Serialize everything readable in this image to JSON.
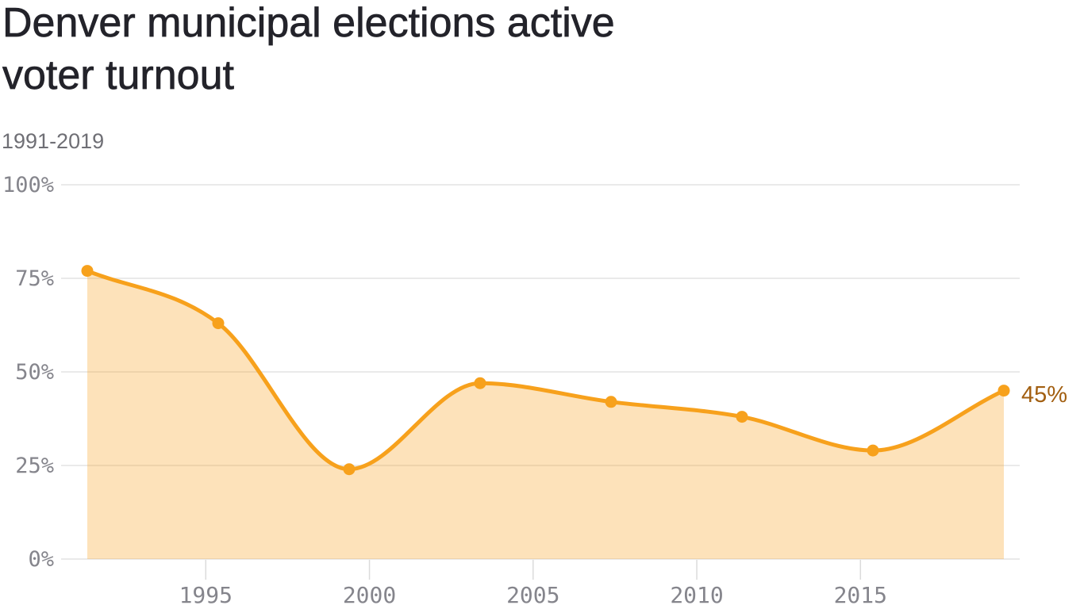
{
  "header": {
    "title": "Denver municipal elections active voter turnout",
    "subtitle": "1991-2019"
  },
  "chart_data": {
    "type": "area",
    "title": "Denver municipal elections active voter turnout",
    "subtitle": "1991-2019",
    "x": [
      1991,
      1995,
      1999,
      2003,
      2007,
      2011,
      2015,
      2019
    ],
    "values": [
      77,
      63,
      24,
      47,
      42,
      38,
      29,
      45
    ],
    "unit": "%",
    "end_label": "45%",
    "xlabel": "",
    "ylabel": "",
    "ylim": [
      0,
      100
    ],
    "grid": true,
    "legend_position": "none",
    "y_ticks": [
      {
        "label": "100%",
        "value": 100
      },
      {
        "label": "75%",
        "value": 75
      },
      {
        "label": "50%",
        "value": 50
      },
      {
        "label": "25%",
        "value": 25
      },
      {
        "label": "0%",
        "value": 0
      }
    ],
    "x_ticks": [
      {
        "label": "1995",
        "value": 1995
      },
      {
        "label": "2000",
        "value": 2000
      },
      {
        "label": "2005",
        "value": 2005
      },
      {
        "label": "2010",
        "value": 2010
      },
      {
        "label": "2015",
        "value": 2015
      }
    ],
    "colors": {
      "line": "#F7A11C",
      "marker": "#F7A11C",
      "fill": "rgba(249,160,27,0.30)",
      "end_label": "#A25F11",
      "axis_label": "#85858C",
      "gridline": "#E3E3E3",
      "tick": "#DBDBDB",
      "title": "#23232A",
      "subtitle": "#6F6F75"
    }
  }
}
